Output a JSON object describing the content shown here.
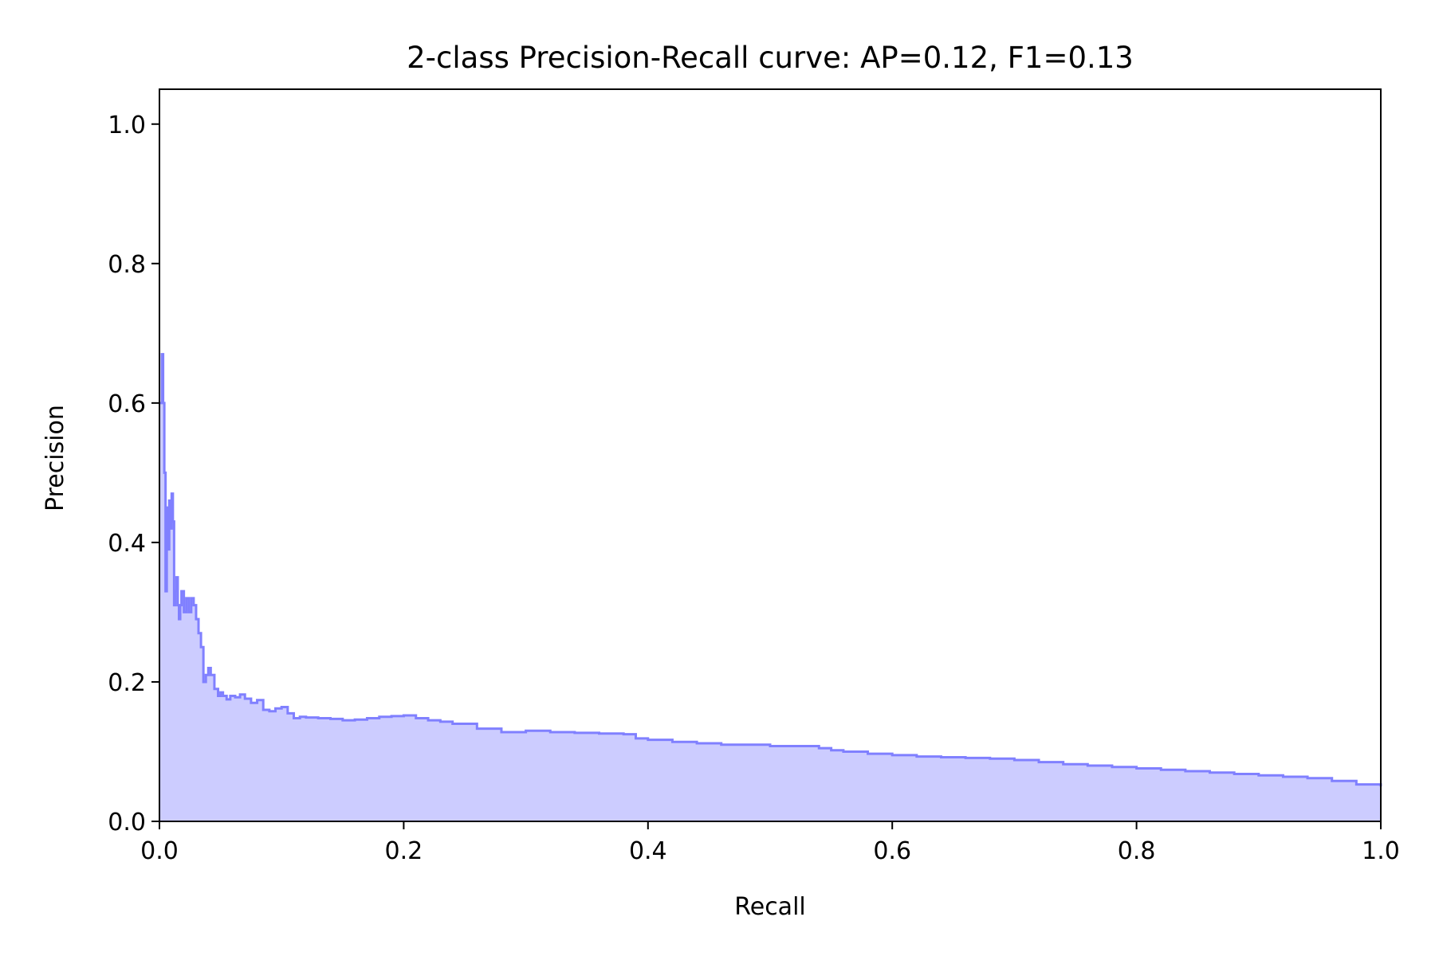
{
  "chart_data": {
    "type": "area",
    "title": "2-class Precision-Recall curve: AP=0.12, F1=0.13",
    "xlabel": "Recall",
    "ylabel": "Precision",
    "xlim": [
      0.0,
      1.0
    ],
    "ylim": [
      0.0,
      1.05
    ],
    "x_ticks": [
      0.0,
      0.2,
      0.4,
      0.6,
      0.8,
      1.0
    ],
    "x_tick_labels": [
      "0.0",
      "0.2",
      "0.4",
      "0.6",
      "0.8",
      "1.0"
    ],
    "y_ticks": [
      0.0,
      0.2,
      0.4,
      0.6,
      0.8,
      1.0
    ],
    "y_tick_labels": [
      "0.0",
      "0.2",
      "0.4",
      "0.6",
      "0.8",
      "1.0"
    ],
    "grid": false,
    "step": "post",
    "colors": {
      "line": "#8080ff",
      "fill": "#ccccff"
    },
    "series": [
      {
        "x": [
          0.0,
          0.002,
          0.003,
          0.004,
          0.005,
          0.006,
          0.007,
          0.008,
          0.009,
          0.01,
          0.011,
          0.012,
          0.013,
          0.014,
          0.015,
          0.016,
          0.017,
          0.018,
          0.02,
          0.022,
          0.024,
          0.026,
          0.028,
          0.03,
          0.032,
          0.034,
          0.036,
          0.038,
          0.04,
          0.042,
          0.045,
          0.048,
          0.05,
          0.052,
          0.055,
          0.058,
          0.062,
          0.066,
          0.07,
          0.075,
          0.08,
          0.085,
          0.09,
          0.095,
          0.1,
          0.105,
          0.11,
          0.115,
          0.12,
          0.13,
          0.14,
          0.15,
          0.16,
          0.17,
          0.18,
          0.19,
          0.2,
          0.21,
          0.22,
          0.23,
          0.24,
          0.26,
          0.28,
          0.3,
          0.32,
          0.34,
          0.36,
          0.38,
          0.39,
          0.4,
          0.42,
          0.44,
          0.46,
          0.48,
          0.5,
          0.52,
          0.54,
          0.55,
          0.56,
          0.58,
          0.6,
          0.62,
          0.64,
          0.66,
          0.68,
          0.7,
          0.72,
          0.74,
          0.76,
          0.78,
          0.8,
          0.82,
          0.84,
          0.86,
          0.88,
          0.9,
          0.92,
          0.94,
          0.96,
          0.98,
          1.0
        ],
        "y": [
          0.6,
          0.67,
          0.6,
          0.5,
          0.33,
          0.45,
          0.39,
          0.46,
          0.42,
          0.47,
          0.43,
          0.31,
          0.33,
          0.35,
          0.31,
          0.29,
          0.31,
          0.33,
          0.3,
          0.32,
          0.3,
          0.32,
          0.31,
          0.29,
          0.27,
          0.25,
          0.2,
          0.21,
          0.22,
          0.21,
          0.19,
          0.18,
          0.185,
          0.18,
          0.175,
          0.18,
          0.178,
          0.182,
          0.176,
          0.17,
          0.174,
          0.16,
          0.158,
          0.162,
          0.164,
          0.155,
          0.148,
          0.15,
          0.149,
          0.148,
          0.147,
          0.145,
          0.146,
          0.148,
          0.15,
          0.151,
          0.152,
          0.148,
          0.145,
          0.143,
          0.14,
          0.133,
          0.128,
          0.13,
          0.128,
          0.127,
          0.126,
          0.125,
          0.119,
          0.117,
          0.114,
          0.112,
          0.11,
          0.11,
          0.108,
          0.108,
          0.105,
          0.102,
          0.1,
          0.097,
          0.095,
          0.093,
          0.092,
          0.091,
          0.09,
          0.088,
          0.085,
          0.082,
          0.08,
          0.078,
          0.076,
          0.074,
          0.072,
          0.07,
          0.068,
          0.066,
          0.064,
          0.062,
          0.058,
          0.053,
          0.05
        ]
      }
    ]
  }
}
